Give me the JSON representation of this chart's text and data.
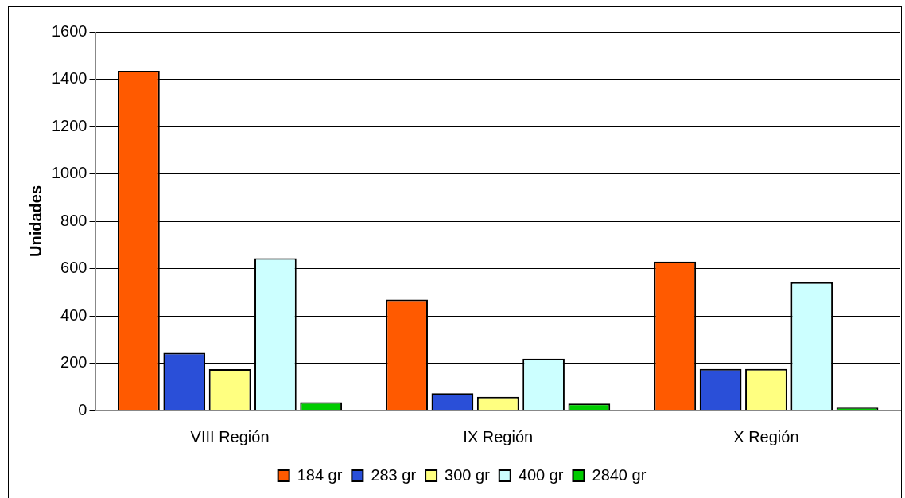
{
  "chart_data": {
    "type": "bar",
    "ylabel": "Unidades",
    "categories": [
      "VIII Región",
      "IX Región",
      "X Región"
    ],
    "series": [
      {
        "name": "184 gr",
        "color": "#ff5a00",
        "values": [
          1435,
          469,
          629
        ]
      },
      {
        "name": "283 gr",
        "color": "#2a4fd8",
        "values": [
          244,
          73,
          176
        ]
      },
      {
        "name": "300 gr",
        "color": "#ffff80",
        "values": [
          175,
          58,
          176
        ]
      },
      {
        "name": "400 gr",
        "color": "#ccffff",
        "values": [
          644,
          219,
          542
        ]
      },
      {
        "name": "2840 gr",
        "color": "#00cc00",
        "values": [
          35,
          29,
          13
        ]
      }
    ],
    "ylim": [
      0,
      1600
    ],
    "yticks": [
      0,
      200,
      400,
      600,
      800,
      1000,
      1200,
      1400,
      1600
    ],
    "grid": "y",
    "legend": "bottom"
  }
}
